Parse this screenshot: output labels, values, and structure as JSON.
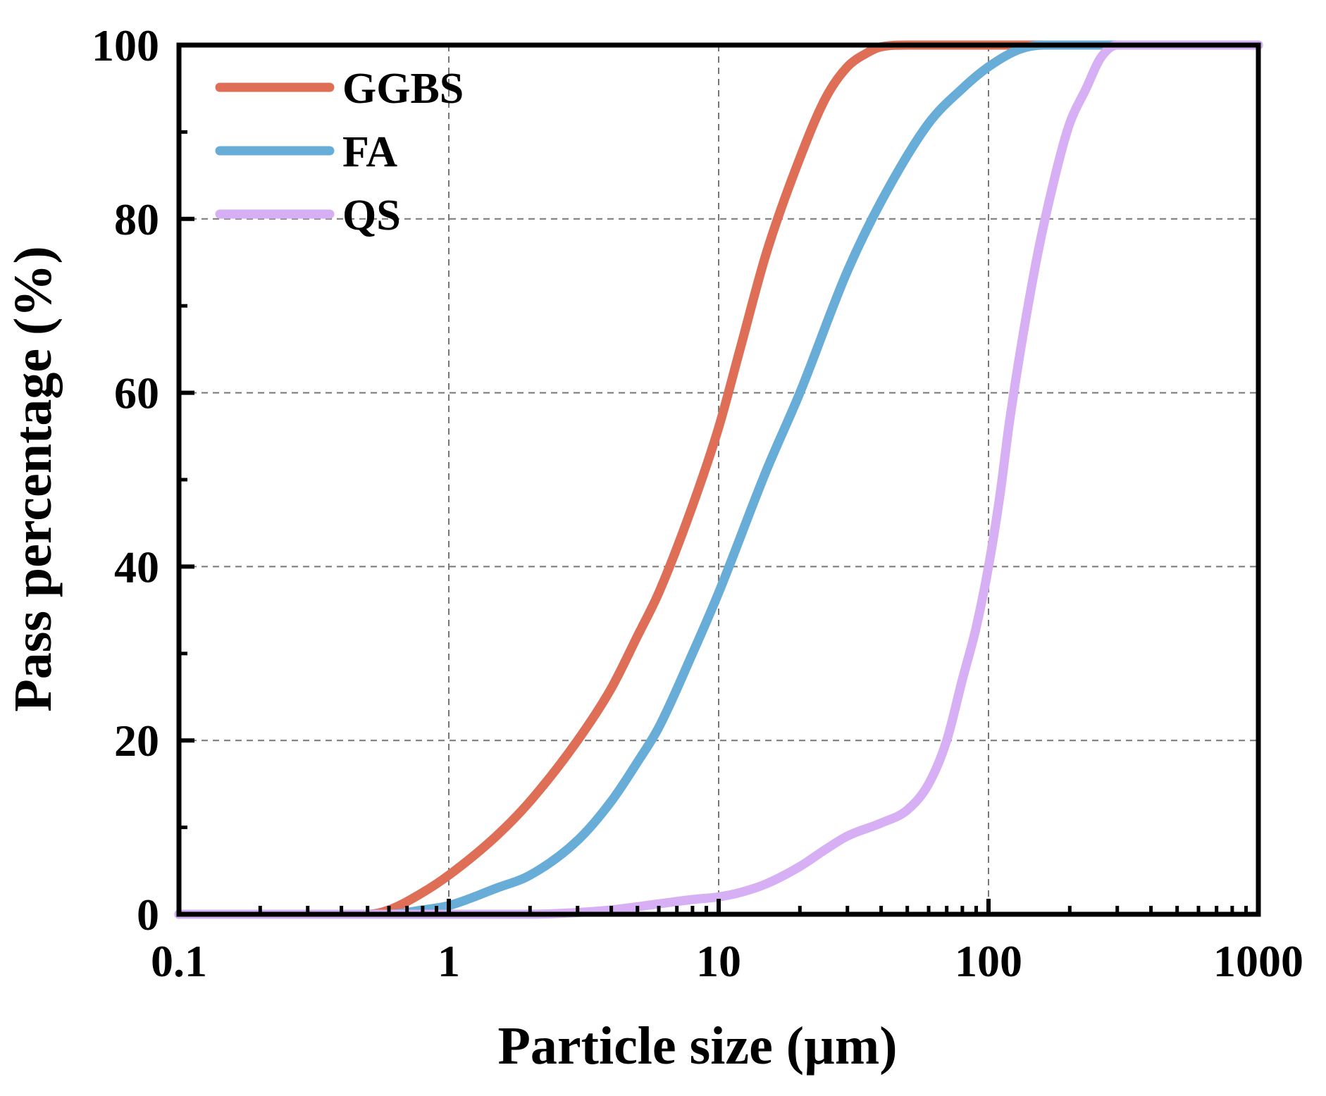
{
  "chart_data": {
    "type": "line",
    "xlabel": "Particle size (µm)",
    "ylabel": "Pass percentage (%)",
    "xscale": "log",
    "xlim": [
      0.1,
      1000
    ],
    "ylim": [
      0,
      100
    ],
    "x_ticks": [
      0.1,
      1,
      10,
      100,
      1000
    ],
    "x_tick_labels": [
      "0.1",
      "1",
      "10",
      "100",
      "1000"
    ],
    "y_ticks": [
      0,
      20,
      40,
      60,
      80,
      100
    ],
    "y_tick_labels": [
      "0",
      "20",
      "40",
      "60",
      "80",
      "100"
    ],
    "grid": true,
    "legend_position": "top-left",
    "series": [
      {
        "name": "GGBS",
        "color": "#DF6E57",
        "x": [
          0.1,
          0.5,
          0.6,
          0.8,
          1,
          1.5,
          2,
          3,
          4,
          5,
          6,
          8,
          10,
          12,
          15,
          20,
          25,
          30,
          35,
          40,
          50,
          100,
          1000
        ],
        "y": [
          0,
          0,
          0.5,
          2.5,
          4.5,
          9,
          13,
          20,
          26,
          32,
          37,
          47,
          56,
          65,
          76,
          87,
          94,
          97.5,
          99,
          99.8,
          100,
          100,
          100
        ]
      },
      {
        "name": "FA",
        "color": "#68ADD8",
        "x": [
          0.1,
          0.6,
          0.8,
          1,
          1.5,
          2,
          3,
          4,
          5,
          6,
          8,
          10,
          15,
          20,
          30,
          40,
          60,
          80,
          100,
          130,
          160,
          1000
        ],
        "y": [
          0,
          0,
          0.5,
          1,
          3,
          4.5,
          8.5,
          13,
          17.5,
          21.5,
          30,
          37,
          51,
          60,
          74,
          82,
          91,
          95,
          97.5,
          99.5,
          100,
          100
        ]
      },
      {
        "name": "QS",
        "color": "#D7AFF4",
        "x": [
          0.1,
          2,
          3,
          4,
          6,
          8,
          10,
          12,
          15,
          20,
          25,
          30,
          40,
          50,
          60,
          70,
          80,
          90,
          100,
          110,
          120,
          150,
          180,
          200,
          230,
          260,
          300,
          1000
        ],
        "y": [
          0,
          0,
          0.2,
          0.5,
          1.2,
          1.7,
          2,
          2.5,
          3.5,
          5.5,
          7.5,
          9,
          10.5,
          12,
          15,
          20,
          27,
          33,
          40,
          48,
          57,
          75,
          86,
          91,
          95,
          98.5,
          100,
          100
        ]
      }
    ]
  }
}
